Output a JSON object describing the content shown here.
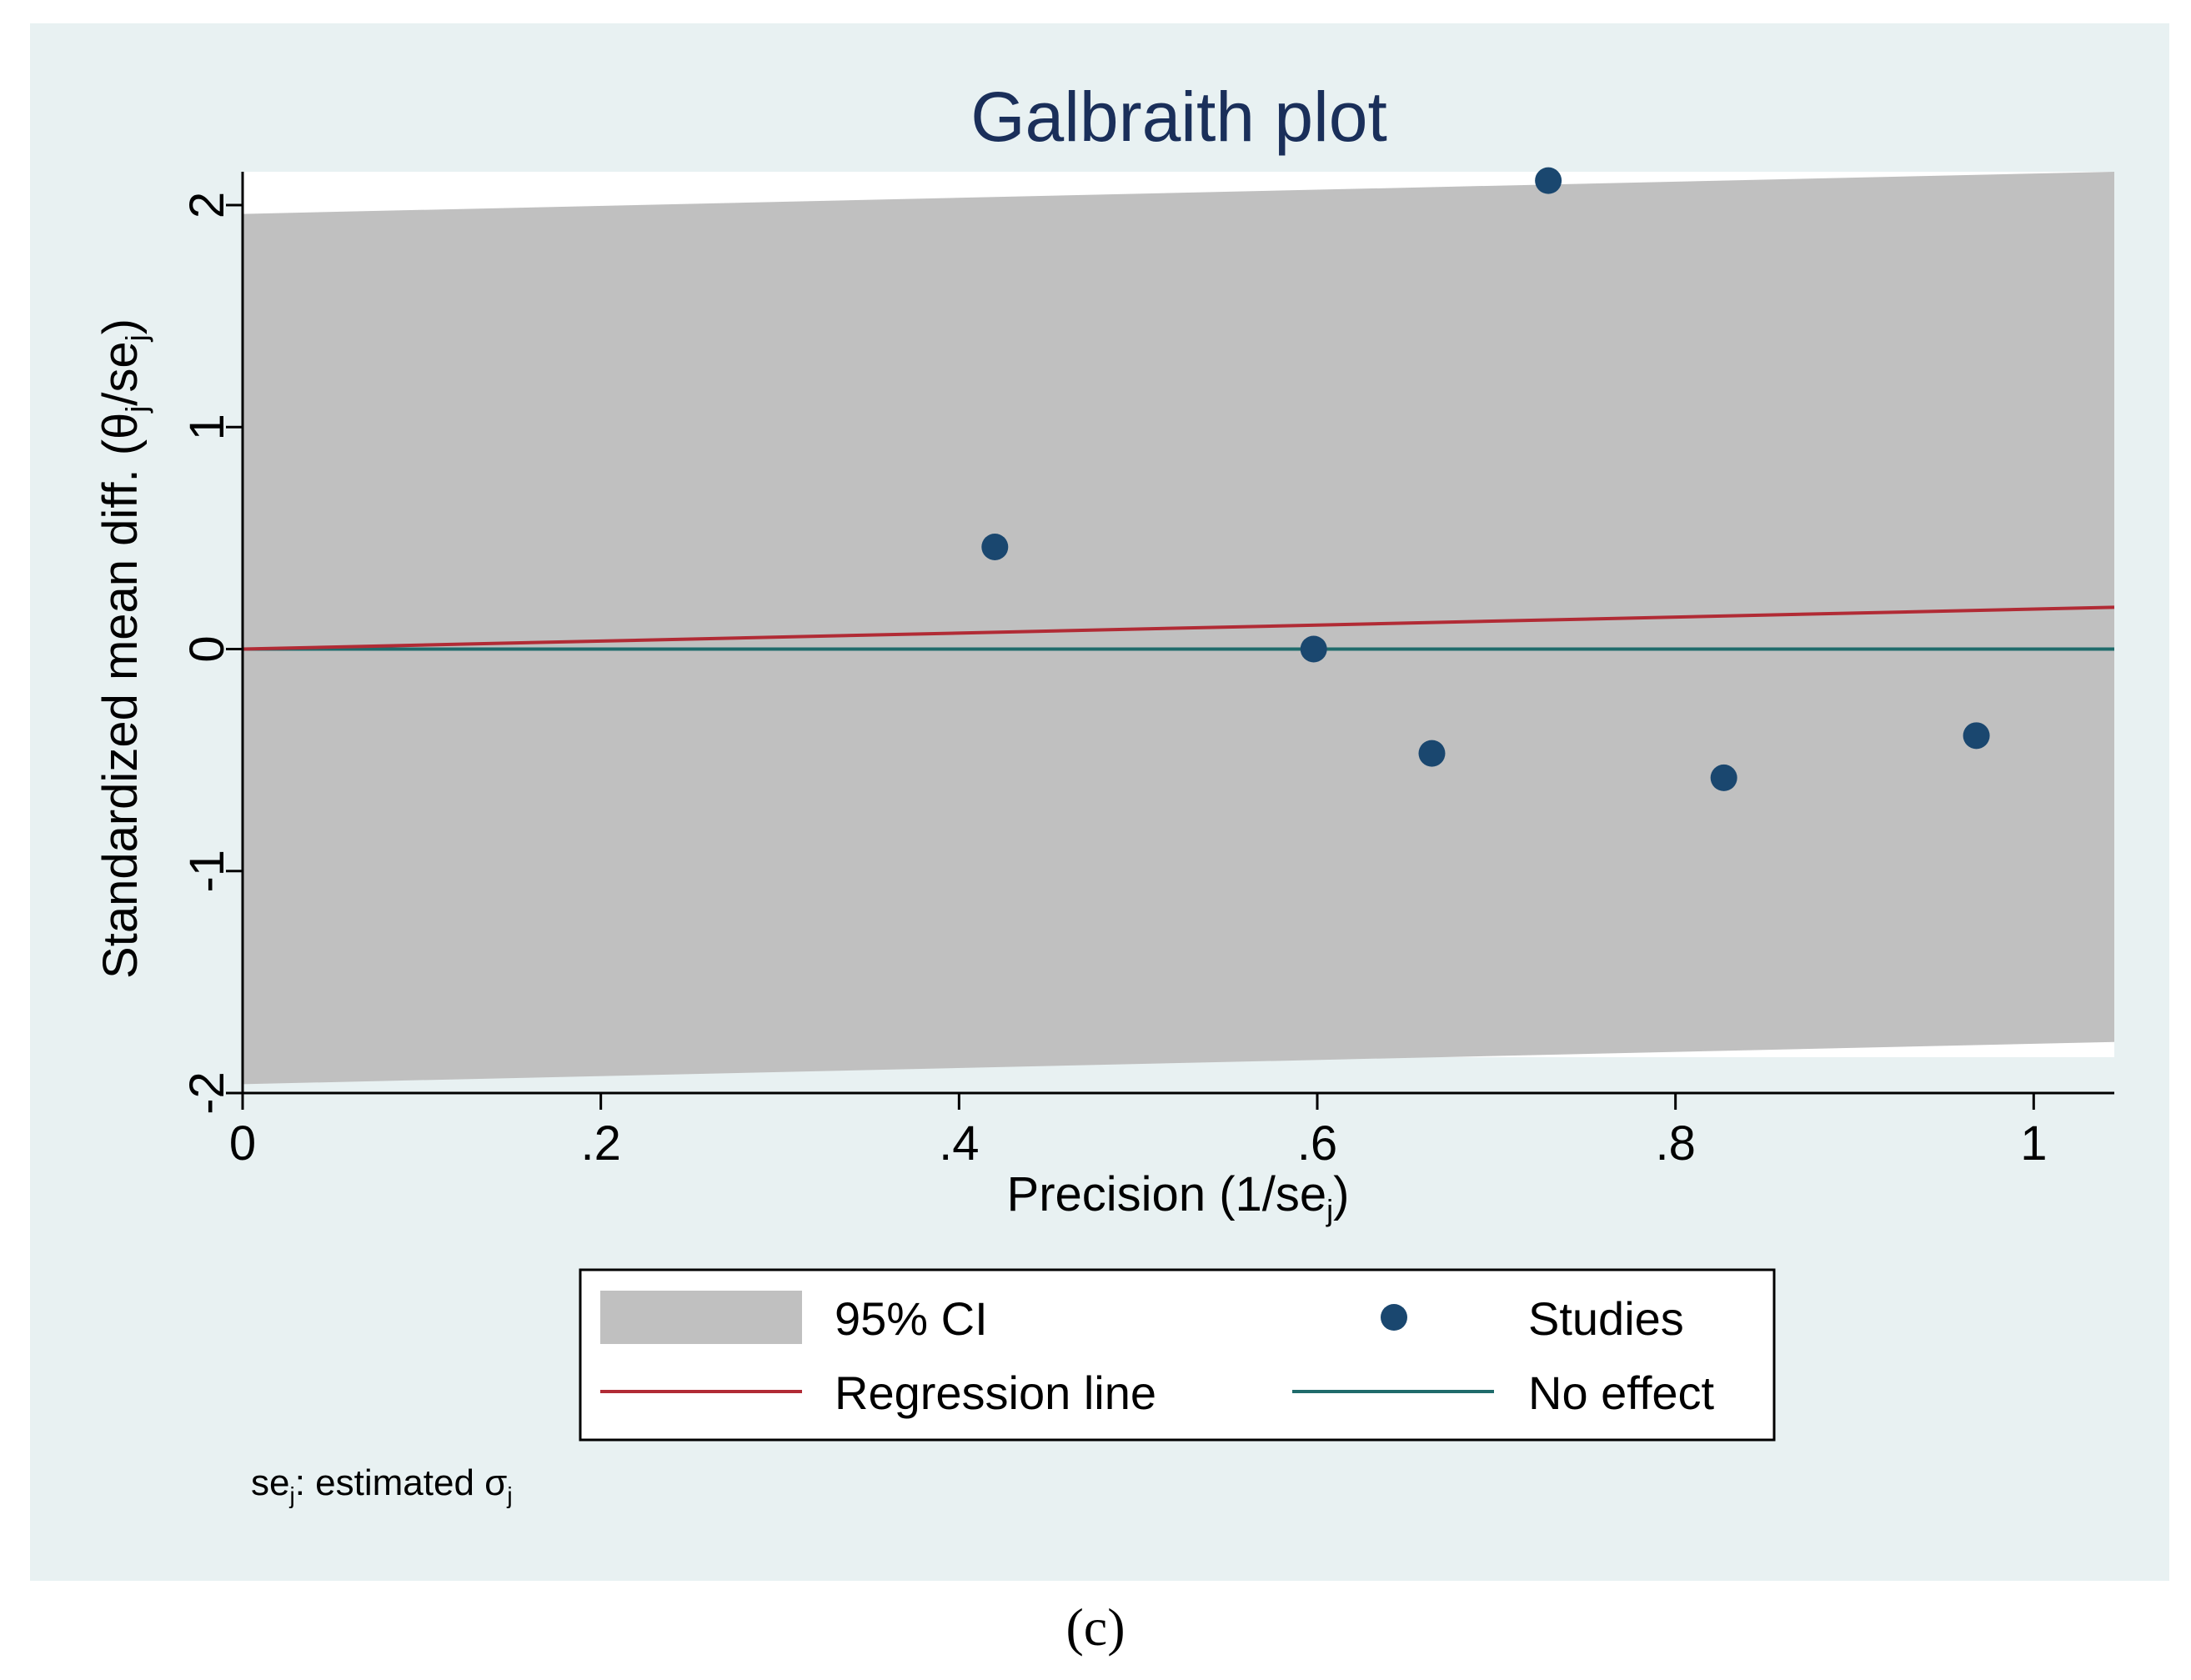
{
  "chart_data": {
    "type": "scatter",
    "title": "Galbraith plot",
    "xlabel": "Precision (1/se",
    "xlabel_sub": "j",
    "xlabel_close": ")",
    "ylabel": "Standardized mean diff. (θ",
    "ylabel_sub1": "j",
    "ylabel_mid": "/se",
    "ylabel_sub2": "j",
    "ylabel_close": ")",
    "xlim": [
      0,
      1.045
    ],
    "ylim": [
      -2,
      2.15
    ],
    "xticks": [
      0,
      0.2,
      0.4,
      0.6,
      0.8,
      1
    ],
    "xtick_labels": [
      "0",
      ".2",
      ".4",
      ".6",
      ".8",
      "1"
    ],
    "yticks": [
      -2,
      -1,
      0,
      1,
      2
    ],
    "ytick_labels": [
      "-2",
      "-1",
      "0",
      "1",
      "2"
    ],
    "ci_band": {
      "name": "95% CI",
      "lower": [
        [
          0,
          -1.96
        ],
        [
          1.045,
          -1.77
        ]
      ],
      "upper": [
        [
          0,
          1.96
        ],
        [
          1.045,
          2.15
        ]
      ]
    },
    "regression_line": {
      "name": "Regression line",
      "slope": 0.18,
      "intercept": 0
    },
    "no_effect_line": {
      "name": "No effect",
      "y": 0
    },
    "series": [
      {
        "name": "Studies",
        "points": [
          {
            "x": 0.42,
            "y": 0.46
          },
          {
            "x": 0.598,
            "y": 0.0
          },
          {
            "x": 0.664,
            "y": -0.47
          },
          {
            "x": 0.729,
            "y": 2.11
          },
          {
            "x": 0.827,
            "y": -0.58
          },
          {
            "x": 0.968,
            "y": -0.39
          }
        ]
      }
    ],
    "legend": {
      "position": "bottom",
      "items": [
        {
          "key": "ci",
          "label": "95% CI"
        },
        {
          "key": "studies",
          "label": "Studies"
        },
        {
          "key": "regression",
          "label": "Regression line"
        },
        {
          "key": "noeffect",
          "label": "No effect"
        }
      ]
    },
    "note_prefix": "se",
    "note_sub": "j",
    "note_mid": ": estimated σ",
    "note_sub2": "j"
  },
  "caption": "(c)",
  "colors": {
    "panel_bg": "#e8f1f2",
    "plot_bg": "#ffffff",
    "ci_fill": "#c0c0c0",
    "marker": "#1a476f",
    "regression": "#b12b35",
    "no_effect": "#1f6b6b",
    "title": "#1a2f5a"
  }
}
